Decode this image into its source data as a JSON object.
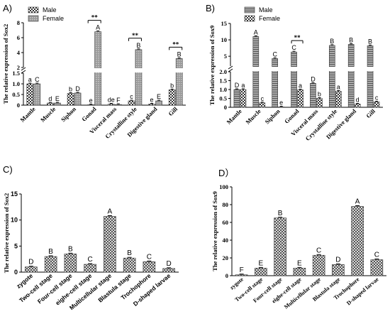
{
  "chart_data": [
    {
      "panel": "A)",
      "type": "bar",
      "ylabel": "The relative expression of Sox2",
      "categories": [
        "Mantle",
        "Muscle",
        "Siphon",
        "Gonad",
        "Visceral mass",
        "Crystalline style",
        "Digestive gland",
        "Gill"
      ],
      "broken_axis": {
        "lower_range": [
          0,
          1.5
        ],
        "lower_ticks": [
          0,
          0.5,
          1.0,
          1.5
        ],
        "upper_range": [
          2,
          8
        ],
        "upper_ticks": [
          2,
          4,
          6,
          8
        ]
      },
      "legend": [
        "Male",
        "Female"
      ],
      "legend_position": "top-left",
      "series": [
        {
          "name": "Male",
          "values": [
            1.0,
            0.1,
            0.55,
            0.02,
            0.05,
            0.2,
            0.05,
            0.72
          ]
        },
        {
          "name": "Female",
          "values": [
            1.0,
            0.1,
            0.57,
            6.8,
            0.03,
            4.4,
            0.2,
            3.2
          ]
        }
      ],
      "labels_male": [
        "a",
        "d",
        "b",
        "e",
        "de",
        "c",
        "e",
        "b"
      ],
      "labels_female": [
        "C",
        "E",
        "D",
        "A",
        "F",
        "B",
        "E",
        "B"
      ],
      "significance": [
        {
          "category": "Gonad",
          "text": "**"
        },
        {
          "category": "Crystalline style",
          "text": "**"
        },
        {
          "category": "Gill",
          "text": "**"
        }
      ]
    },
    {
      "panel": "B)",
      "type": "bar",
      "ylabel": "The relative expression of Sox9",
      "categories": [
        "Mantle",
        "Muscle",
        "Siphon",
        "Gonad",
        "Visceral mass",
        "Crystalline style",
        "Digestive gland",
        "Gill"
      ],
      "broken_axis": {
        "lower_range": [
          0,
          2
        ],
        "lower_ticks": [
          0,
          0.5,
          1.0,
          1.5,
          2.0
        ],
        "upper_range": [
          2,
          15
        ],
        "upper_ticks": [
          5,
          10,
          15
        ]
      },
      "legend": [
        "Male",
        "Female"
      ],
      "legend_position": "top-left",
      "series": [
        {
          "name": "Male",
          "values": [
            1.0,
            11.0,
            4.3,
            6.3,
            1.35,
            8.3,
            8.6,
            8.2
          ]
        },
        {
          "name": "Female",
          "values": [
            1.0,
            0.25,
            0.02,
            0.98,
            0.5,
            0.9,
            0.18,
            0.3
          ]
        }
      ],
      "labels_male": [
        "D",
        "A",
        "C",
        "C",
        "D",
        "B",
        "B",
        "B"
      ],
      "labels_female": [
        "a",
        "c",
        "e",
        "a",
        "b",
        "a",
        "d",
        "c"
      ],
      "significance": [
        {
          "category": "Gonad",
          "text": "**"
        }
      ]
    },
    {
      "panel": "C)",
      "type": "bar",
      "ylabel": "The relative expression of Sox2",
      "categories": [
        "zygote",
        "Two-cell stage",
        "Four-cell stage",
        "eight-cell stage",
        "Multicellular stage",
        "Blastula stage",
        "Trochophore",
        "D-shaped larvae"
      ],
      "ylim": [
        0,
        15
      ],
      "yticks": [
        0,
        5,
        10,
        15
      ],
      "values": [
        1.0,
        3.0,
        3.5,
        1.5,
        10.7,
        2.7,
        2.0,
        0.7
      ],
      "labels": [
        "D",
        "B",
        "B",
        "C",
        "A",
        "B",
        "C",
        "D"
      ]
    },
    {
      "panel": "D）",
      "type": "bar",
      "ylabel": "The relative expression of Sox9",
      "categories": [
        "zygote",
        "Two-cell stage",
        "Four-cell stage",
        "eighe-cell stage",
        "Multicellular stage",
        "Blastula stage",
        "Trochophore",
        "D-shaped larvae"
      ],
      "ylim": [
        0,
        100
      ],
      "yticks": [
        0,
        20,
        40,
        60,
        80,
        100
      ],
      "values": [
        1.0,
        8.5,
        65.0,
        8.5,
        23.0,
        12.5,
        78.0,
        18.0
      ],
      "labels": [
        "F",
        "E",
        "B",
        "E",
        "C",
        "D",
        "A",
        "C"
      ]
    }
  ],
  "panel_c_category_display": [
    "zygote",
    "Two-cell stage",
    "Four-cell stage",
    "eighe-cell stage",
    "Multicellular stage",
    "Blastula stage",
    "Trochophore",
    "D-shaped larvae"
  ]
}
